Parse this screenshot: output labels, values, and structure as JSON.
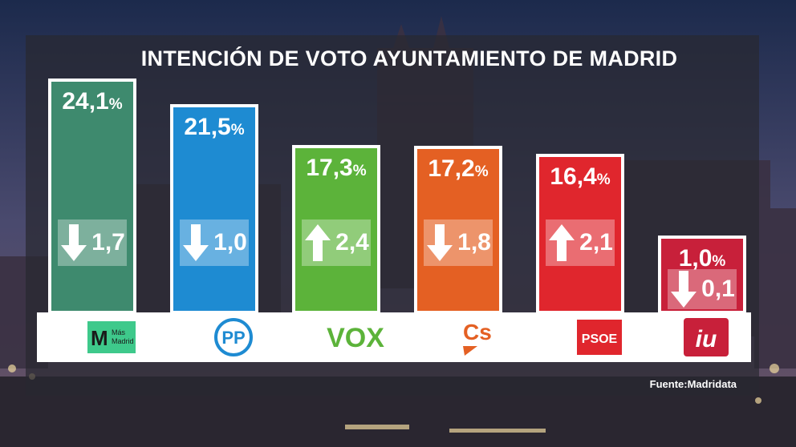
{
  "title": "INTENCIÓN DE VOTO AYUNTAMIENTO DE MADRID",
  "source": "Fuente:Madridata",
  "colors": {
    "mas_madrid": "#3e8a6e",
    "pp": "#1e8bd2",
    "vox": "#5cb33a",
    "cs": "#e46023",
    "psoe": "#e0262d",
    "iu": "#c8203a"
  },
  "parties": [
    {
      "value_label": "24,1",
      "pct": "%",
      "change_label": "1,7",
      "direction": "down",
      "logo_text": "Más Madrid",
      "icon": "mas-madrid-logo"
    },
    {
      "value_label": "21,5",
      "pct": "%",
      "change_label": "1,0",
      "direction": "down",
      "logo_text": "PP",
      "icon": "pp-logo"
    },
    {
      "value_label": "17,3",
      "pct": "%",
      "change_label": "2,4",
      "direction": "up",
      "logo_text": "VOX",
      "icon": "vox-logo"
    },
    {
      "value_label": "17,2",
      "pct": "%",
      "change_label": "1,8",
      "direction": "down",
      "logo_text": "Cs",
      "icon": "cs-logo"
    },
    {
      "value_label": "16,4",
      "pct": "%",
      "change_label": "2,1",
      "direction": "up",
      "logo_text": "PSOE",
      "icon": "psoe-logo"
    },
    {
      "value_label": "1,0",
      "pct": "%",
      "change_label": "0,1",
      "direction": "down",
      "logo_text": "iu",
      "icon": "iu-logo"
    }
  ],
  "chart_data": {
    "type": "bar",
    "title": "INTENCIÓN DE VOTO AYUNTAMIENTO DE MADRID",
    "categories": [
      "Más Madrid",
      "PP",
      "VOX",
      "Cs",
      "PSOE",
      "IU"
    ],
    "values": [
      24.1,
      21.5,
      17.3,
      17.2,
      16.4,
      1.0
    ],
    "changes": [
      -1.7,
      -1.0,
      2.4,
      -1.8,
      2.1,
      -0.1
    ],
    "unit": "%"
  }
}
